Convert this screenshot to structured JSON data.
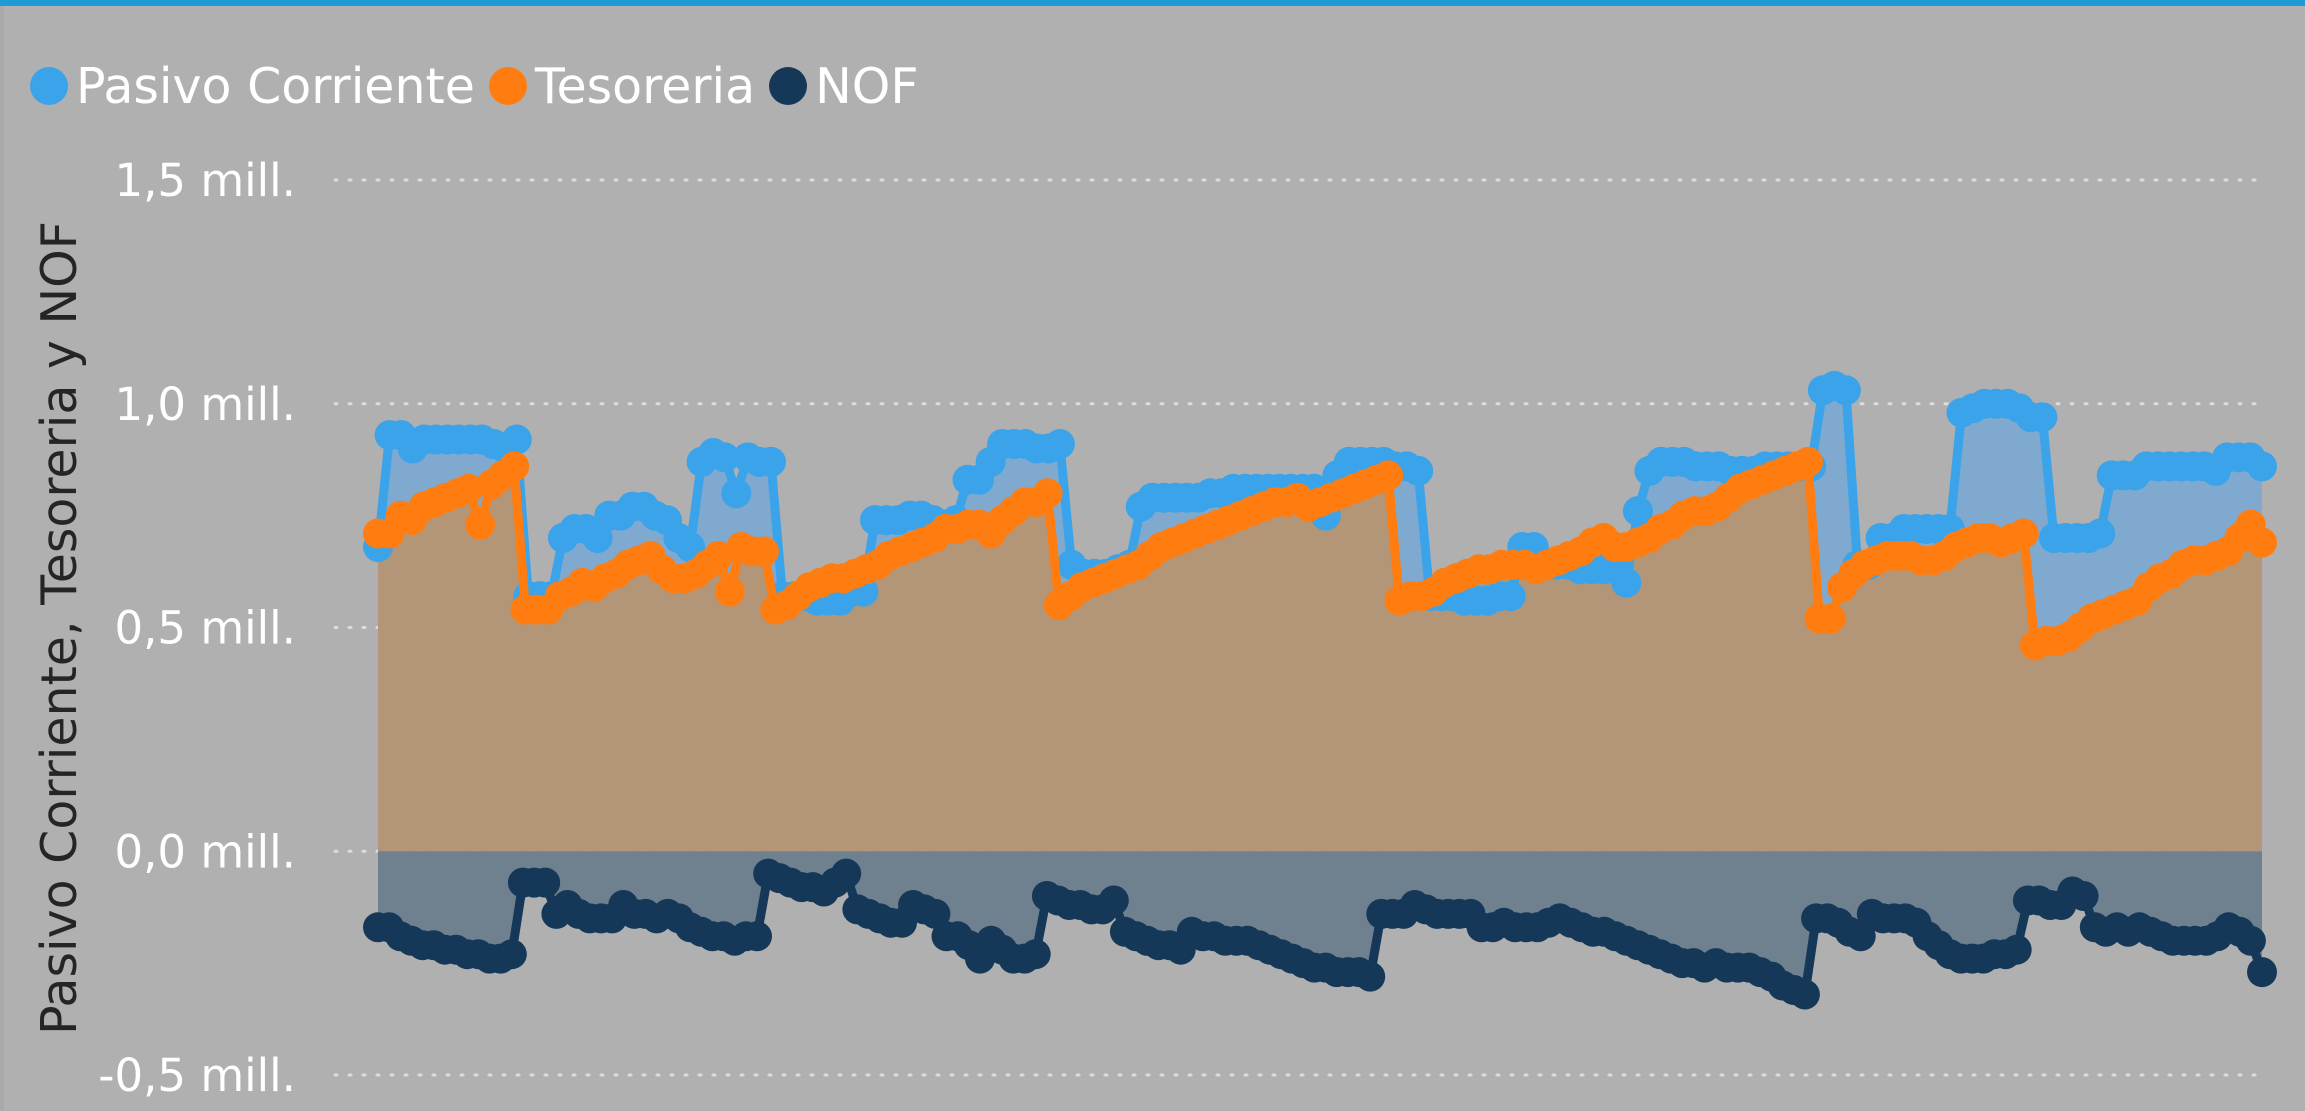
{
  "chart_data": {
    "type": "area",
    "title": "",
    "xlabel": "",
    "ylabel": "Pasivo Corriente, Tesoreria y NOF",
    "ylim": [
      -0.5,
      1.5
    ],
    "yticks": [
      {
        "value": 1.5,
        "label": "1,5 mill."
      },
      {
        "value": 1.0,
        "label": "1,0 mill."
      },
      {
        "value": 0.5,
        "label": "0,5 mill."
      },
      {
        "value": 0.0,
        "label": "0,0 mill."
      },
      {
        "value": -0.5,
        "label": "-0,5 mill."
      }
    ],
    "grid": true,
    "legend_position": "top-left",
    "colors": {
      "pasivo": "#3aa3ea",
      "tesoreria": "#ff7d10",
      "nof": "#153858",
      "pasivo_fill": "#7fa9cf",
      "tesoreria_fill": "#b39677",
      "nof_fill": "#6f808e",
      "grid": "#dcdcdc",
      "background": "#b0b0b0",
      "top_bar": "#1e9ad6"
    },
    "series": [
      {
        "name": "Pasivo Corriente",
        "color": "#3aa3ea",
        "values": [
          0.68,
          0.93,
          0.93,
          0.9,
          0.92,
          0.92,
          0.92,
          0.92,
          0.92,
          0.92,
          0.91,
          0.9,
          0.92,
          0.57,
          0.57,
          0.57,
          0.7,
          0.72,
          0.72,
          0.7,
          0.75,
          0.75,
          0.77,
          0.77,
          0.75,
          0.74,
          0.7,
          0.68,
          0.87,
          0.89,
          0.88,
          0.8,
          0.88,
          0.87,
          0.87,
          0.57,
          0.57,
          0.57,
          0.56,
          0.56,
          0.56,
          0.58,
          0.58,
          0.74,
          0.74,
          0.74,
          0.75,
          0.75,
          0.74,
          0.73,
          0.74,
          0.83,
          0.83,
          0.87,
          0.91,
          0.91,
          0.91,
          0.9,
          0.9,
          0.91,
          0.64,
          0.62,
          0.62,
          0.62,
          0.63,
          0.64,
          0.77,
          0.79,
          0.79,
          0.79,
          0.79,
          0.79,
          0.8,
          0.8,
          0.81,
          0.81,
          0.81,
          0.81,
          0.81,
          0.81,
          0.81,
          0.81,
          0.75,
          0.84,
          0.87,
          0.87,
          0.87,
          0.87,
          0.86,
          0.86,
          0.85,
          0.57,
          0.57,
          0.57,
          0.56,
          0.56,
          0.56,
          0.57,
          0.57,
          0.68,
          0.68,
          0.64,
          0.64,
          0.64,
          0.63,
          0.63,
          0.63,
          0.63,
          0.6,
          0.76,
          0.85,
          0.87,
          0.87,
          0.87,
          0.86,
          0.86,
          0.86,
          0.85,
          0.85,
          0.85,
          0.86,
          0.86,
          0.86,
          0.86,
          0.86,
          1.03,
          1.04,
          1.03,
          0.64,
          0.64,
          0.7,
          0.7,
          0.72,
          0.72,
          0.72,
          0.72,
          0.72,
          0.98,
          0.99,
          1.0,
          1.0,
          1.0,
          0.99,
          0.97,
          0.97,
          0.7,
          0.7,
          0.7,
          0.7,
          0.71,
          0.84,
          0.84,
          0.84,
          0.86,
          0.86,
          0.86,
          0.86,
          0.86,
          0.86,
          0.85,
          0.88,
          0.88,
          0.88,
          0.86
        ]
      },
      {
        "name": "Tesoreria",
        "color": "#ff7d10",
        "values": [
          0.71,
          0.71,
          0.75,
          0.74,
          0.77,
          0.78,
          0.79,
          0.8,
          0.81,
          0.73,
          0.82,
          0.84,
          0.86,
          0.54,
          0.54,
          0.54,
          0.57,
          0.58,
          0.6,
          0.59,
          0.61,
          0.62,
          0.64,
          0.65,
          0.66,
          0.63,
          0.61,
          0.61,
          0.62,
          0.64,
          0.66,
          0.58,
          0.68,
          0.67,
          0.67,
          0.54,
          0.55,
          0.57,
          0.59,
          0.6,
          0.61,
          0.61,
          0.62,
          0.63,
          0.64,
          0.66,
          0.67,
          0.68,
          0.69,
          0.7,
          0.72,
          0.72,
          0.73,
          0.73,
          0.71,
          0.74,
          0.76,
          0.78,
          0.78,
          0.8,
          0.55,
          0.57,
          0.59,
          0.6,
          0.61,
          0.62,
          0.63,
          0.64,
          0.66,
          0.68,
          0.69,
          0.7,
          0.71,
          0.72,
          0.73,
          0.74,
          0.75,
          0.76,
          0.77,
          0.78,
          0.78,
          0.79,
          0.77,
          0.78,
          0.79,
          0.8,
          0.81,
          0.82,
          0.83,
          0.84,
          0.56,
          0.57,
          0.57,
          0.58,
          0.6,
          0.61,
          0.62,
          0.63,
          0.63,
          0.64,
          0.64,
          0.64,
          0.63,
          0.64,
          0.65,
          0.66,
          0.67,
          0.69,
          0.7,
          0.68,
          0.68,
          0.69,
          0.7,
          0.72,
          0.73,
          0.75,
          0.76,
          0.76,
          0.77,
          0.79,
          0.81,
          0.82,
          0.83,
          0.84,
          0.85,
          0.86,
          0.87,
          0.52,
          0.52,
          0.59,
          0.62,
          0.64,
          0.65,
          0.66,
          0.66,
          0.66,
          0.65,
          0.65,
          0.66,
          0.68,
          0.69,
          0.7,
          0.7,
          0.69,
          0.7,
          0.71,
          0.46,
          0.47,
          0.47,
          0.48,
          0.5,
          0.52,
          0.53,
          0.54,
          0.55,
          0.56,
          0.59,
          0.61,
          0.62,
          0.64,
          0.65,
          0.65,
          0.66,
          0.67,
          0.7,
          0.73,
          0.69
        ]
      },
      {
        "name": "NOF",
        "color": "#153858",
        "values": [
          -0.17,
          -0.17,
          -0.19,
          -0.2,
          -0.21,
          -0.21,
          -0.22,
          -0.22,
          -0.23,
          -0.23,
          -0.24,
          -0.24,
          -0.23,
          -0.07,
          -0.07,
          -0.07,
          -0.14,
          -0.12,
          -0.14,
          -0.15,
          -0.15,
          -0.15,
          -0.12,
          -0.14,
          -0.14,
          -0.15,
          -0.14,
          -0.15,
          -0.17,
          -0.18,
          -0.19,
          -0.19,
          -0.2,
          -0.19,
          -0.19,
          -0.05,
          -0.06,
          -0.07,
          -0.08,
          -0.08,
          -0.09,
          -0.07,
          -0.05,
          -0.13,
          -0.14,
          -0.15,
          -0.16,
          -0.16,
          -0.12,
          -0.13,
          -0.14,
          -0.19,
          -0.19,
          -0.21,
          -0.24,
          -0.2,
          -0.22,
          -0.24,
          -0.24,
          -0.23,
          -0.1,
          -0.11,
          -0.12,
          -0.12,
          -0.13,
          -0.13,
          -0.11,
          -0.18,
          -0.19,
          -0.2,
          -0.21,
          -0.21,
          -0.22,
          -0.18,
          -0.19,
          -0.19,
          -0.2,
          -0.2,
          -0.2,
          -0.21,
          -0.22,
          -0.23,
          -0.24,
          -0.25,
          -0.26,
          -0.26,
          -0.27,
          -0.27,
          -0.27,
          -0.28,
          -0.14,
          -0.14,
          -0.14,
          -0.12,
          -0.13,
          -0.14,
          -0.14,
          -0.14,
          -0.14,
          -0.17,
          -0.17,
          -0.16,
          -0.17,
          -0.17,
          -0.17,
          -0.16,
          -0.15,
          -0.16,
          -0.17,
          -0.18,
          -0.18,
          -0.19,
          -0.2,
          -0.21,
          -0.22,
          -0.23,
          -0.24,
          -0.25,
          -0.25,
          -0.26,
          -0.25,
          -0.26,
          -0.26,
          -0.26,
          -0.27,
          -0.28,
          -0.3,
          -0.31,
          -0.32,
          -0.15,
          -0.15,
          -0.16,
          -0.18,
          -0.19,
          -0.14,
          -0.15,
          -0.15,
          -0.15,
          -0.16,
          -0.19,
          -0.21,
          -0.23,
          -0.24,
          -0.24,
          -0.24,
          -0.23,
          -0.23,
          -0.22,
          -0.11,
          -0.11,
          -0.12,
          -0.12,
          -0.09,
          -0.1,
          -0.17,
          -0.18,
          -0.17,
          -0.18,
          -0.17,
          -0.18,
          -0.19,
          -0.2,
          -0.2,
          -0.2,
          -0.2,
          -0.19,
          -0.17,
          -0.18,
          -0.2,
          -0.27
        ]
      }
    ]
  }
}
